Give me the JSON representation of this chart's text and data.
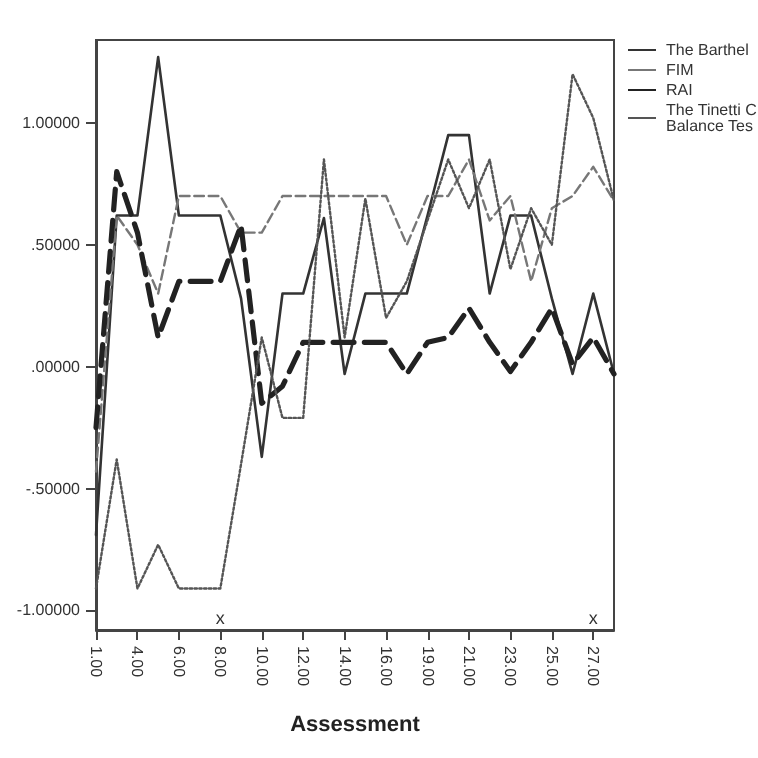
{
  "chart_data": {
    "type": "line",
    "xlabel": "Assessment",
    "categories": [
      "1.00",
      null,
      "4.00",
      null,
      "6.00",
      null,
      "8.00",
      null,
      "10.00",
      null,
      "12.00",
      null,
      "14.00",
      null,
      "16.00",
      null,
      "19.00",
      null,
      "21.00",
      null,
      "23.00",
      null,
      "25.00",
      null,
      "27.00",
      null
    ],
    "series": [
      {
        "name": "The Barthel",
        "color": "#333333",
        "line_style": "solid",
        "values": [
          -0.69,
          0.62,
          0.62,
          1.27,
          0.62,
          0.62,
          0.62,
          0.28,
          -0.37,
          0.3,
          0.3,
          0.61,
          -0.03,
          0.3,
          0.3,
          0.3,
          0.62,
          0.95,
          0.95,
          0.3,
          0.62,
          0.62,
          0.28,
          -0.03,
          0.3,
          -0.03
        ]
      },
      {
        "name": "FIM",
        "color": "#777777",
        "line_style": "dashed",
        "values": [
          -0.43,
          0.62,
          0.5,
          0.3,
          0.7,
          0.7,
          0.7,
          0.55,
          0.55,
          0.7,
          0.7,
          0.7,
          0.7,
          0.7,
          0.7,
          0.5,
          0.7,
          0.7,
          0.85,
          0.6,
          0.7,
          0.35,
          0.65,
          0.7,
          0.82,
          0.68
        ]
      },
      {
        "name": "RAI",
        "color": "#222222",
        "line_style": "dashed",
        "values": [
          -0.25,
          0.8,
          0.55,
          0.12,
          0.35,
          0.35,
          0.35,
          0.58,
          -0.15,
          -0.08,
          0.1,
          0.1,
          0.1,
          0.1,
          0.1,
          -0.03,
          0.1,
          0.12,
          0.24,
          0.1,
          -0.02,
          0.1,
          0.24,
          0.01,
          0.12,
          -0.03
        ]
      },
      {
        "name": "The Tinetti C\nBalance Tes",
        "color": "#555555",
        "line_style": "dotted",
        "values": [
          -0.91,
          -0.38,
          -0.91,
          -0.73,
          -0.91,
          -0.91,
          -0.91,
          -0.4,
          0.12,
          -0.21,
          -0.21,
          0.85,
          0.12,
          0.69,
          0.2,
          0.35,
          0.6,
          0.85,
          0.65,
          0.85,
          0.4,
          0.65,
          0.5,
          1.2,
          1.02,
          0.68
        ]
      }
    ],
    "ylim": [
      -1.08,
      1.34
    ],
    "yticks": [
      {
        "value": -1,
        "label": "-1.00000"
      },
      {
        "value": -0.5,
        "label": "-.50000"
      },
      {
        "value": 0,
        "label": ".00000"
      },
      {
        "value": 0.5,
        "label": ".50000"
      },
      {
        "value": 1,
        "label": "1.00000"
      }
    ],
    "annotations": [
      "x",
      "x"
    ],
    "legend": "top right",
    "grid": false,
    "marker": "none"
  }
}
